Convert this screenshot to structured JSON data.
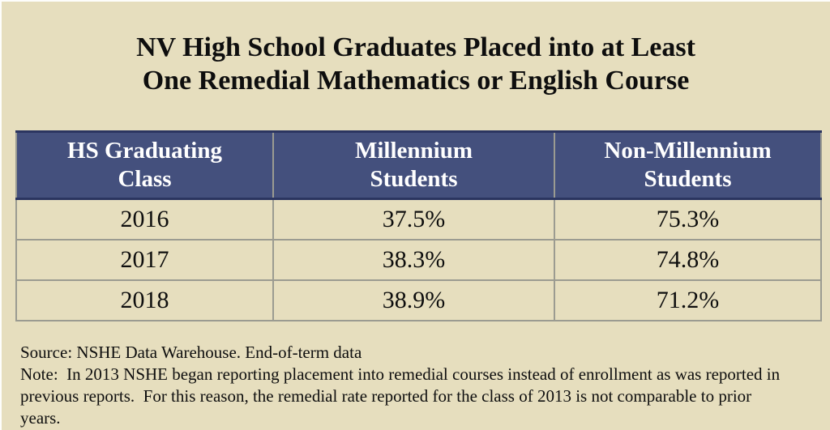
{
  "title": {
    "line1": "NV High School Graduates Placed into at Least",
    "line2": "One Remedial Mathematics or English Course"
  },
  "table": {
    "headers": [
      {
        "lines": [
          "HS Graduating",
          "Class"
        ]
      },
      {
        "lines": [
          "Millennium",
          "Students"
        ]
      },
      {
        "lines": [
          "Non-Millennium",
          "Students"
        ]
      }
    ],
    "rows": [
      {
        "cells": [
          "2016",
          "37.5%",
          "75.3%"
        ]
      },
      {
        "cells": [
          "2017",
          "38.3%",
          "74.8%"
        ]
      },
      {
        "cells": [
          "2018",
          "38.9%",
          "71.2%"
        ]
      }
    ]
  },
  "footer": {
    "source": "Source: NSHE Data Warehouse. End-of-term data",
    "note": "Note:  In 2013 NSHE began reporting placement into remedial courses instead of enrollment as was reported in previous reports.  For this reason, the remedial rate reported for the class of 2013 is not comparable to prior years."
  },
  "colors": {
    "background": "#E6DEBE",
    "header_bg": "#44507D",
    "header_text": "#FFFFFF",
    "accent_navy": "#2B3560",
    "border_gray": "#9B9B91",
    "text": "#141414"
  },
  "chart_data": {
    "type": "table",
    "title": "NV High School Graduates Placed into at Least One Remedial Mathematics or English Course",
    "columns": [
      "HS Graduating Class",
      "Millennium Students",
      "Non-Millennium Students"
    ],
    "rows": [
      [
        "2016",
        "37.5%",
        "75.3%"
      ],
      [
        "2017",
        "38.3%",
        "74.8%"
      ],
      [
        "2018",
        "38.9%",
        "71.2%"
      ]
    ],
    "series": [
      {
        "name": "Millennium Students",
        "values": [
          37.5,
          38.3,
          38.9
        ]
      },
      {
        "name": "Non-Millennium Students",
        "values": [
          75.3,
          74.8,
          71.2
        ]
      }
    ],
    "categories": [
      "2016",
      "2017",
      "2018"
    ],
    "unit": "%",
    "notes": [
      "Source: NSHE Data Warehouse. End-of-term data",
      "Note:  In 2013 NSHE began reporting placement into remedial courses instead of enrollment as was reported in previous reports.  For this reason, the remedial rate reported for the class of 2013 is not comparable to prior years."
    ]
  }
}
